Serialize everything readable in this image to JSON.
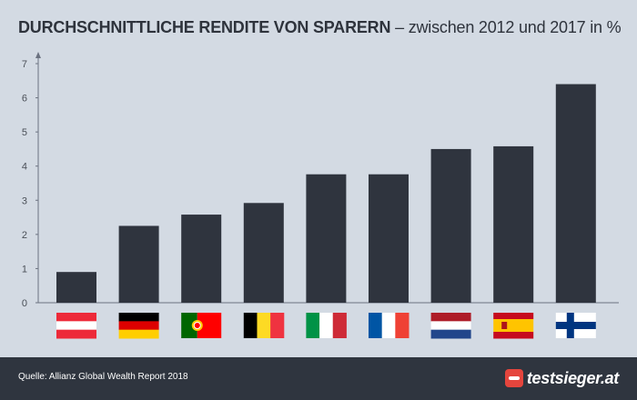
{
  "header": {
    "title_bold": "DURCHSCHNITTLICHE RENDITE VON SPARERN",
    "title_rest": " – zwischen 2012 und 2017 in %"
  },
  "footer": {
    "source": "Quelle: Allianz Global Wealth Report 2018",
    "logo": "testsieger.at"
  },
  "colors": {
    "background": "#d3dae3",
    "bar": "#2f343e",
    "axis": "#6b7280",
    "footer": "#2f353f",
    "logo_accent": "#e5453d"
  },
  "chart_data": {
    "type": "bar",
    "title": "DURCHSCHNITTLICHE RENDITE VON SPARERN – zwischen 2012 und 2017 in %",
    "categories": [
      "austria-flag",
      "germany-flag",
      "portugal-flag",
      "belgium-flag",
      "italy-flag",
      "france-flag",
      "netherlands-flag",
      "spain-flag",
      "finland-flag"
    ],
    "values": [
      0.9,
      2.25,
      2.58,
      2.92,
      3.76,
      3.76,
      4.5,
      4.58,
      6.4
    ],
    "ylim": [
      0,
      7
    ],
    "yticks": [
      "0",
      "1",
      "2",
      "3",
      "4",
      "5",
      "6",
      "7"
    ],
    "grid": false,
    "legend": "none"
  }
}
